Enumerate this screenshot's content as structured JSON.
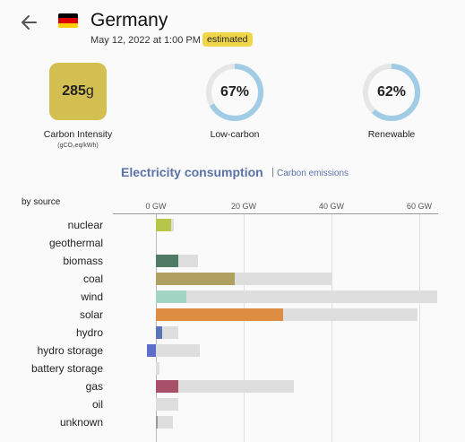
{
  "header": {
    "back_icon": "back-arrow-icon",
    "flag_icon": "germany-flag-icon",
    "country": "Germany",
    "datetime": "May 12, 2022 at 1:00 PM",
    "badge": "estimated",
    "badge_color": "#f0d64a"
  },
  "metrics": {
    "carbon_intensity": {
      "value": "285",
      "unit": "g",
      "label": "Carbon Intensity",
      "sublabel": "(gCO₂eq/kWh)",
      "color": "#d4bf52"
    },
    "low_carbon": {
      "value": "67%",
      "fraction": 0.67,
      "label": "Low-carbon",
      "color": "#a0cce6"
    },
    "renewable": {
      "value": "62%",
      "fraction": 0.62,
      "label": "Renewable",
      "color": "#a0cce6"
    }
  },
  "chart_header": {
    "title": "Electricity consumption",
    "separator": "|",
    "link": "Carbon emissions"
  },
  "chart_data": {
    "type": "bar",
    "orientation": "horizontal",
    "subtitle": "by source",
    "xticks": [
      "0 GW",
      "20 GW",
      "40 GW",
      "60 GW"
    ],
    "xtick_values": [
      0,
      20,
      40,
      60
    ],
    "xlim": [
      -10,
      64
    ],
    "categories": [
      "nuclear",
      "geothermal",
      "biomass",
      "coal",
      "wind",
      "solar",
      "hydro",
      "hydro storage",
      "battery storage",
      "gas",
      "oil",
      "unknown"
    ],
    "series": [
      {
        "values": [
          3.5,
          0,
          5,
          18,
          7,
          29,
          1.5,
          -2,
          0,
          5,
          0,
          0.3
        ],
        "colors": [
          "#b5c64a",
          "#cccccc",
          "#4e7a66",
          "#b0a060",
          "#a2d5c3",
          "#dc8d42",
          "#5b74b8",
          "#5b6ec8",
          "#888888",
          "#a84f6a",
          "#888888",
          "#999999"
        ]
      },
      {
        "values": [
          4,
          0,
          9.5,
          40,
          64,
          59.5,
          5,
          10,
          0.8,
          31.5,
          5,
          3.8
        ]
      }
    ]
  }
}
